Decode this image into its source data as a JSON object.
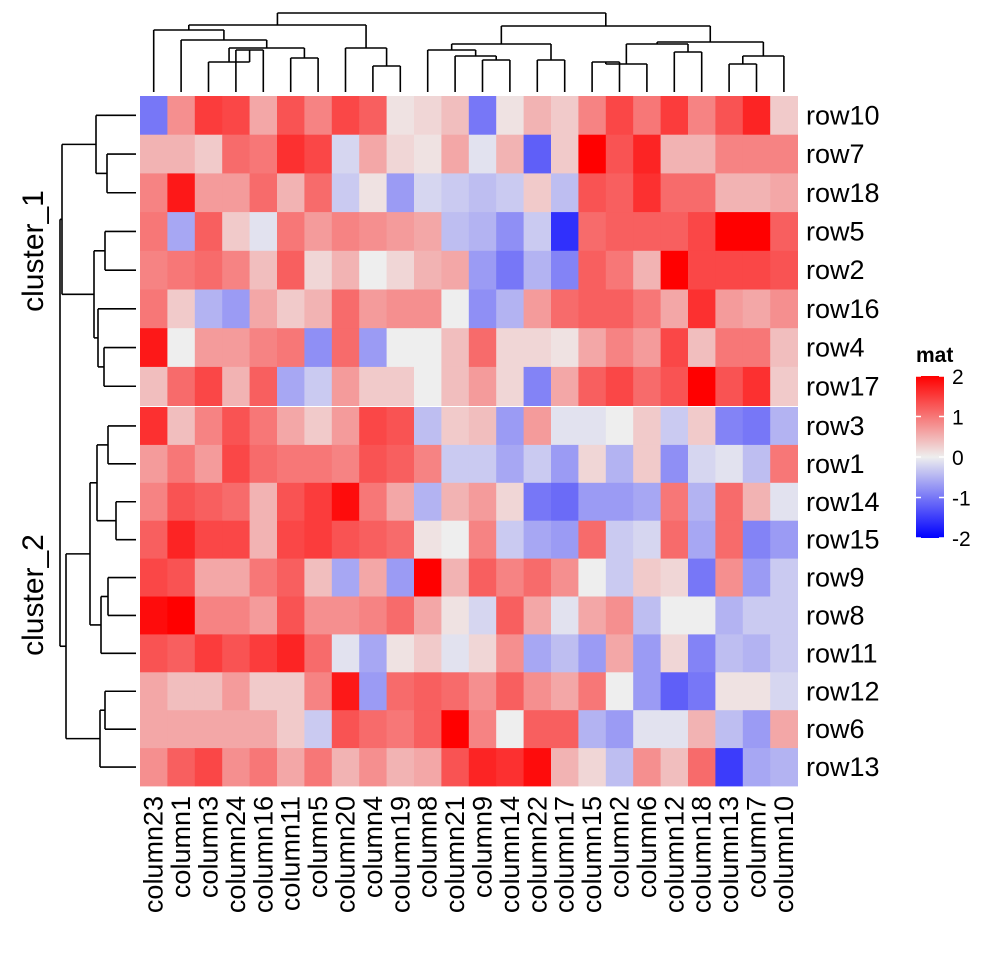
{
  "chart_data": {
    "type": "heatmap",
    "columns": [
      "column23",
      "column1",
      "column3",
      "column24",
      "column16",
      "column11",
      "column5",
      "column20",
      "column4",
      "column19",
      "column8",
      "column21",
      "column9",
      "column14",
      "column22",
      "column17",
      "column15",
      "column2",
      "column6",
      "column12",
      "column18",
      "column13",
      "column7",
      "column10"
    ],
    "row_slices": [
      {
        "name": "cluster_1",
        "rows": [
          "row10",
          "row7",
          "row18",
          "row5",
          "row2",
          "row16",
          "row4",
          "row17"
        ]
      },
      {
        "name": "cluster_2",
        "rows": [
          "row3",
          "row1",
          "row14",
          "row15",
          "row9",
          "row8",
          "row11",
          "row12",
          "row6",
          "row13"
        ]
      }
    ],
    "values": [
      [
        -1.0,
        0.8,
        1.5,
        1.4,
        0.6,
        1.3,
        0.9,
        1.4,
        1.2,
        0.1,
        0.2,
        0.4,
        -1.0,
        0.1,
        0.5,
        0.3,
        0.9,
        1.4,
        1.0,
        1.5,
        0.9,
        1.3,
        1.7,
        0.3
      ],
      [
        0.5,
        0.5,
        0.3,
        1.1,
        1.0,
        1.6,
        1.4,
        -0.2,
        0.6,
        0.2,
        0.1,
        0.6,
        -0.1,
        0.5,
        -1.2,
        0.3,
        2.0,
        1.3,
        1.7,
        0.5,
        0.5,
        0.9,
        0.9,
        0.9
      ],
      [
        0.9,
        1.8,
        0.7,
        0.7,
        1.1,
        0.5,
        1.1,
        -0.3,
        0.1,
        -0.7,
        -0.2,
        -0.3,
        -0.4,
        -0.3,
        0.3,
        -0.4,
        1.3,
        1.2,
        1.6,
        1.1,
        1.1,
        0.5,
        0.5,
        0.6
      ],
      [
        1.0,
        -0.6,
        1.2,
        0.3,
        -0.1,
        1.0,
        0.7,
        0.9,
        0.8,
        0.7,
        0.6,
        -0.4,
        -0.5,
        -0.8,
        -0.3,
        -1.6,
        1.1,
        1.2,
        1.2,
        1.2,
        1.4,
        2.1,
        2.1,
        1.2
      ],
      [
        0.9,
        1.0,
        1.1,
        0.9,
        0.4,
        1.2,
        0.2,
        0.5,
        0.0,
        0.2,
        0.5,
        0.6,
        -0.7,
        -1.0,
        -0.5,
        -0.9,
        1.2,
        1.0,
        0.5,
        2.0,
        1.4,
        1.4,
        1.4,
        1.3
      ],
      [
        1.0,
        0.3,
        -0.5,
        -0.7,
        0.6,
        0.3,
        0.5,
        1.1,
        0.7,
        0.8,
        0.8,
        0.0,
        -0.8,
        -0.5,
        0.7,
        1.1,
        1.2,
        1.2,
        1.0,
        0.6,
        1.6,
        0.7,
        0.6,
        0.8
      ],
      [
        1.8,
        0.0,
        0.7,
        0.7,
        0.9,
        1.0,
        -0.8,
        1.1,
        -0.7,
        0.0,
        0.0,
        0.4,
        1.1,
        0.2,
        0.2,
        0.1,
        0.6,
        0.9,
        0.7,
        1.4,
        0.4,
        1.0,
        1.0,
        0.4
      ],
      [
        0.4,
        1.1,
        1.4,
        0.5,
        1.2,
        -0.6,
        -0.3,
        0.7,
        0.3,
        0.3,
        0.0,
        0.4,
        0.7,
        0.2,
        -0.9,
        0.6,
        1.2,
        1.4,
        1.1,
        1.3,
        2.2,
        1.3,
        1.6,
        0.3
      ],
      [
        1.6,
        0.4,
        0.9,
        1.3,
        1.0,
        0.6,
        0.3,
        0.7,
        1.4,
        1.3,
        -0.4,
        0.3,
        0.4,
        -0.7,
        0.7,
        -0.1,
        -0.1,
        0.0,
        0.3,
        -0.3,
        0.3,
        -0.9,
        -1.0,
        -0.5
      ],
      [
        0.7,
        1.0,
        0.7,
        1.4,
        1.1,
        1.0,
        1.0,
        0.9,
        1.3,
        1.2,
        0.9,
        -0.3,
        -0.3,
        -0.6,
        -0.3,
        -0.7,
        0.2,
        -0.5,
        0.3,
        -0.8,
        -0.2,
        -0.1,
        -0.4,
        1.0
      ],
      [
        0.9,
        1.3,
        1.2,
        1.1,
        0.5,
        1.3,
        1.5,
        1.9,
        1.0,
        0.6,
        -0.5,
        0.5,
        0.7,
        0.2,
        -1.0,
        -1.1,
        -0.7,
        -0.7,
        -0.6,
        1.0,
        -0.5,
        1.1,
        0.5,
        -0.1
      ],
      [
        1.2,
        1.7,
        1.4,
        1.4,
        0.5,
        1.4,
        1.5,
        1.3,
        1.2,
        1.1,
        0.1,
        0.0,
        0.9,
        -0.3,
        -0.6,
        -0.7,
        1.1,
        -0.3,
        -0.2,
        1.1,
        -0.6,
        1.1,
        -0.9,
        -0.7
      ],
      [
        1.4,
        1.3,
        0.6,
        0.6,
        1.0,
        1.2,
        0.4,
        -0.6,
        0.6,
        -0.7,
        2.0,
        0.5,
        1.2,
        0.9,
        1.1,
        0.8,
        0.0,
        -0.3,
        0.3,
        0.2,
        -1.0,
        0.8,
        -0.7,
        -0.3
      ],
      [
        1.9,
        2.0,
        0.9,
        0.9,
        0.7,
        1.3,
        0.8,
        0.8,
        0.9,
        1.1,
        0.6,
        0.1,
        -0.2,
        1.2,
        0.6,
        -0.1,
        0.6,
        0.8,
        -0.4,
        0.0,
        0.0,
        -0.5,
        -0.3,
        -0.3
      ],
      [
        1.3,
        1.2,
        1.5,
        1.3,
        1.5,
        1.7,
        1.1,
        -0.1,
        -0.6,
        0.1,
        0.3,
        -0.1,
        0.2,
        0.8,
        -0.6,
        -0.4,
        -0.7,
        0.6,
        -0.7,
        0.2,
        -0.9,
        -0.4,
        -0.5,
        -0.3
      ],
      [
        0.6,
        0.4,
        0.4,
        0.7,
        0.3,
        0.3,
        0.9,
        1.8,
        -0.7,
        1.1,
        1.2,
        1.1,
        0.8,
        1.2,
        0.8,
        0.6,
        1.0,
        0.0,
        -0.7,
        -1.2,
        -1.0,
        0.1,
        0.1,
        -0.2
      ],
      [
        0.6,
        0.6,
        0.6,
        0.6,
        0.6,
        0.3,
        -0.3,
        1.3,
        1.1,
        1.0,
        1.2,
        2.0,
        0.9,
        0.0,
        1.2,
        1.2,
        -0.5,
        -0.7,
        -0.1,
        -0.1,
        0.5,
        -0.4,
        -0.7,
        0.6
      ],
      [
        0.8,
        1.2,
        1.4,
        0.8,
        1.0,
        0.6,
        1.0,
        0.5,
        0.8,
        0.5,
        0.6,
        1.3,
        1.7,
        1.6,
        1.9,
        0.5,
        0.2,
        -0.4,
        0.8,
        0.4,
        1.1,
        -1.5,
        -0.6,
        -0.5
      ]
    ],
    "colorbar": {
      "title": "mat",
      "colors": [
        "#0000FF",
        "#EEEEEE",
        "#FF0000"
      ],
      "stops": [
        -2,
        0,
        2
      ],
      "ticks": [
        2,
        1,
        0,
        -1,
        -2
      ]
    }
  },
  "dendrogram": {
    "column_order_positions": [
      0,
      1,
      2,
      3,
      4,
      5,
      6,
      7,
      8,
      9,
      10,
      11,
      12,
      13,
      14,
      15,
      16,
      17,
      18,
      19,
      20,
      21,
      22,
      23
    ],
    "column_merges": [
      [
        0,
        1,
        0.84
      ],
      [
        2,
        3,
        0.46
      ],
      [
        4,
        5,
        0.52
      ],
      [
        6,
        7,
        0.44
      ],
      [
        8,
        9,
        0.36
      ],
      [
        10,
        11,
        0.42
      ],
      [
        12,
        13,
        0.36
      ],
      [
        14,
        15,
        0.24
      ],
      [
        16,
        17,
        0.44
      ],
      [
        18,
        19,
        0.49
      ],
      [
        20,
        21,
        0.56
      ],
      [
        22,
        23,
        0.39
      ]
    ]
  }
}
